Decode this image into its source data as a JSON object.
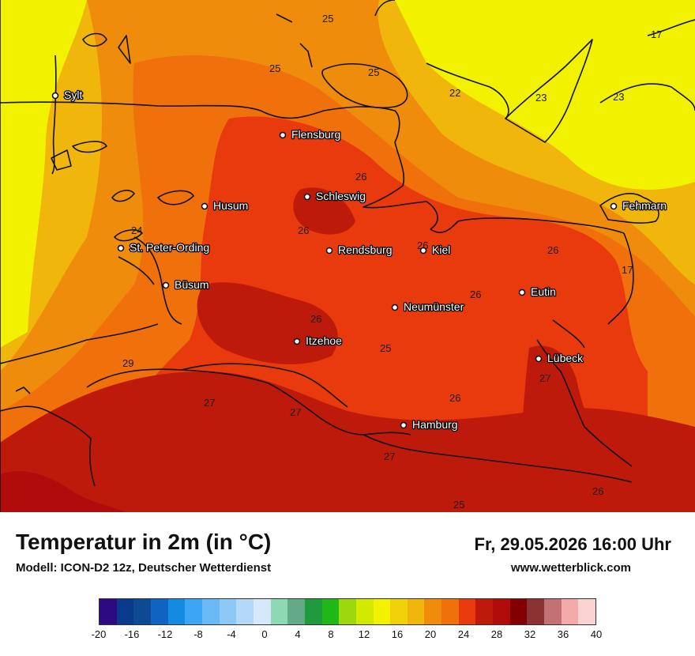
{
  "title": "Temperatur in 2m (in °C)",
  "model": "Modell: ICON-D2 12z, Deutscher Wetterdienst",
  "datetime": "Fr, 29.05.2026 16:00 Uhr",
  "website": "www.wetterblick.com",
  "cities": [
    {
      "name": "Sylt"
    },
    {
      "name": "Flensburg"
    },
    {
      "name": "Husum"
    },
    {
      "name": "Schleswig"
    },
    {
      "name": "St. Peter-Ording"
    },
    {
      "name": "Rendsburg"
    },
    {
      "name": "Kiel"
    },
    {
      "name": "Fehmarn"
    },
    {
      "name": "Büsum"
    },
    {
      "name": "Eutin"
    },
    {
      "name": "Neumünster"
    },
    {
      "name": "Itzehoe"
    },
    {
      "name": "Lübeck"
    },
    {
      "name": "Hamburg"
    }
  ],
  "isotherm_labels": [
    "25",
    "25",
    "25",
    "22",
    "23",
    "23",
    "17",
    "26",
    "24",
    "26",
    "26",
    "26",
    "26",
    "17",
    "26",
    "25",
    "29",
    "27",
    "27",
    "26",
    "27",
    "27",
    "25",
    "26"
  ],
  "legend": {
    "ticks": [
      "-20",
      "-16",
      "-12",
      "-8",
      "-4",
      "0",
      "4",
      "8",
      "12",
      "16",
      "20",
      "24",
      "28",
      "32",
      "36",
      "40"
    ],
    "colors": [
      "#2e0a82",
      "#0a3a8c",
      "#0e4a92",
      "#0f64c2",
      "#148ae0",
      "#3aa6f4",
      "#6ab8f4",
      "#8ec8f6",
      "#b4d9f8",
      "#d6e8fa",
      "#8fd8b4",
      "#62aa88",
      "#1f9a3c",
      "#20b818",
      "#9cd80c",
      "#d2ea00",
      "#f2f200",
      "#f0d20a",
      "#f0b60c",
      "#f08c0c",
      "#f0700c",
      "#e83a0c",
      "#be1a0c",
      "#b00c0c",
      "#820002",
      "#8c3232",
      "#c27272",
      "#f2aaaa",
      "#fbd2d2"
    ]
  },
  "palette": {
    "t17": "#f2f200",
    "t22": "#f0d20a",
    "t23": "#f0b60c",
    "t24": "#f08c0c",
    "t25": "#f0700c",
    "t26": "#e83a0c",
    "t27": "#be1a0c",
    "t29": "#b00c0c"
  }
}
